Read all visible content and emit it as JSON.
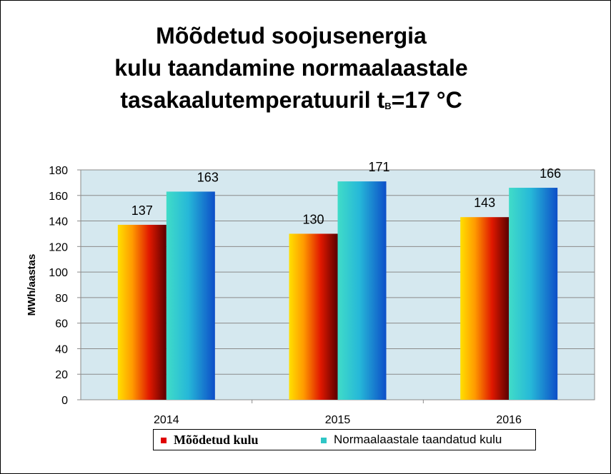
{
  "title": {
    "line1": "Mõõdetud soojusenergia",
    "line2": "kulu taandamine normaalaastale",
    "line3_pre": "tasakaalutemperatuuril t",
    "line3_sub": "B",
    "line3_post": "=17 °C"
  },
  "chart_data": {
    "type": "bar",
    "categories": [
      "2014",
      "2015",
      "2016"
    ],
    "series": [
      {
        "name": "Mõõdetud kulu",
        "values": [
          137,
          130,
          143
        ],
        "color": "#e00000"
      },
      {
        "name": "Normaalaastale taandatud kulu",
        "values": [
          163,
          171,
          166
        ],
        "color": "#2fc6c6"
      }
    ],
    "ylabel": "MWh/aastas",
    "xlabel": "",
    "ylim": [
      0,
      180
    ],
    "yticks": [
      0,
      20,
      40,
      60,
      80,
      100,
      120,
      140,
      160,
      180
    ],
    "grid": true,
    "plot_background": "#d5e8ef",
    "data_labels": true,
    "legend_position": "bottom"
  },
  "legend": {
    "item1": "Mõõdetud kulu",
    "item2": "Normaalaastale taandatud kulu"
  }
}
